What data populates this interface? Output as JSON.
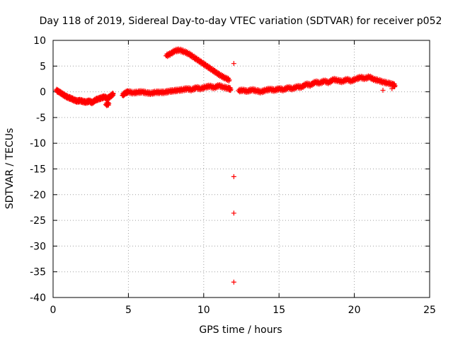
{
  "chart_data": {
    "type": "scatter",
    "title": "Day 118 of 2019, Sidereal Day-to-day VTEC variation (SDTVAR) for receiver p052",
    "xlabel": "GPS time / hours",
    "ylabel": "SDTVAR / TECUs",
    "xlim": [
      0,
      25
    ],
    "ylim": [
      -40,
      10
    ],
    "xticks": [
      0,
      5,
      10,
      15,
      20,
      25
    ],
    "yticks": [
      10,
      5,
      0,
      -5,
      -10,
      -15,
      -20,
      -25,
      -30,
      -35,
      -40
    ],
    "grid": true,
    "marker": "+",
    "series": [
      {
        "name": "SDTVAR",
        "color": "#ff0000",
        "points": [
          [
            0.2,
            0.3
          ],
          [
            0.4,
            0.0
          ],
          [
            0.6,
            -0.4
          ],
          [
            0.8,
            -0.8
          ],
          [
            1.0,
            -1.1
          ],
          [
            1.2,
            -1.3
          ],
          [
            1.4,
            -1.6
          ],
          [
            1.6,
            -1.8
          ],
          [
            1.8,
            -1.7
          ],
          [
            2.0,
            -1.9
          ],
          [
            2.2,
            -2.0
          ],
          [
            2.4,
            -1.8
          ],
          [
            2.6,
            -2.1
          ],
          [
            2.8,
            -1.6
          ],
          [
            3.0,
            -1.4
          ],
          [
            3.2,
            -1.2
          ],
          [
            3.4,
            -1.0
          ],
          [
            3.6,
            -1.3
          ],
          [
            3.8,
            -0.9
          ],
          [
            4.0,
            -0.4
          ],
          [
            3.5,
            -2.5
          ],
          [
            3.7,
            -2.3
          ],
          [
            4.6,
            -0.7
          ],
          [
            4.8,
            -0.2
          ],
          [
            5.0,
            0.0
          ],
          [
            5.3,
            -0.2
          ],
          [
            5.6,
            -0.1
          ],
          [
            5.9,
            0.0
          ],
          [
            6.2,
            -0.2
          ],
          [
            6.5,
            -0.3
          ],
          [
            6.8,
            -0.1
          ],
          [
            7.1,
            -0.1
          ],
          [
            7.4,
            -0.1
          ],
          [
            7.7,
            0.1
          ],
          [
            8.0,
            0.2
          ],
          [
            8.3,
            0.3
          ],
          [
            8.6,
            0.4
          ],
          [
            8.9,
            0.6
          ],
          [
            9.2,
            0.4
          ],
          [
            9.5,
            0.8
          ],
          [
            9.8,
            0.6
          ],
          [
            10.1,
            0.9
          ],
          [
            10.4,
            1.1
          ],
          [
            10.7,
            0.8
          ],
          [
            11.0,
            1.2
          ],
          [
            11.3,
            0.9
          ],
          [
            11.6,
            0.7
          ],
          [
            11.8,
            0.5
          ],
          [
            7.5,
            7.0
          ],
          [
            7.8,
            7.4
          ],
          [
            8.1,
            8.0
          ],
          [
            8.4,
            8.1
          ],
          [
            8.7,
            7.8
          ],
          [
            9.0,
            7.4
          ],
          [
            9.3,
            6.8
          ],
          [
            9.6,
            6.2
          ],
          [
            9.9,
            5.6
          ],
          [
            10.2,
            5.0
          ],
          [
            10.5,
            4.4
          ],
          [
            10.8,
            3.8
          ],
          [
            11.1,
            3.2
          ],
          [
            11.4,
            2.7
          ],
          [
            11.7,
            2.3
          ],
          [
            12.0,
            5.5
          ],
          [
            12.0,
            -16.5
          ],
          [
            12.0,
            -23.6
          ],
          [
            12.0,
            -37.0
          ],
          [
            12.3,
            0.2
          ],
          [
            12.6,
            0.3
          ],
          [
            12.9,
            0.1
          ],
          [
            13.2,
            0.4
          ],
          [
            13.5,
            0.2
          ],
          [
            13.8,
            0.0
          ],
          [
            14.1,
            0.3
          ],
          [
            14.4,
            0.5
          ],
          [
            14.7,
            0.3
          ],
          [
            15.0,
            0.6
          ],
          [
            15.3,
            0.4
          ],
          [
            15.6,
            0.8
          ],
          [
            15.9,
            0.6
          ],
          [
            16.2,
            1.0
          ],
          [
            16.5,
            0.9
          ],
          [
            16.8,
            1.5
          ],
          [
            17.1,
            1.3
          ],
          [
            17.4,
            1.9
          ],
          [
            17.7,
            1.7
          ],
          [
            18.0,
            2.1
          ],
          [
            18.3,
            1.8
          ],
          [
            18.6,
            2.4
          ],
          [
            18.9,
            2.2
          ],
          [
            19.2,
            2.0
          ],
          [
            19.5,
            2.4
          ],
          [
            19.8,
            2.1
          ],
          [
            20.1,
            2.5
          ],
          [
            20.4,
            2.8
          ],
          [
            20.7,
            2.6
          ],
          [
            21.0,
            2.9
          ],
          [
            21.3,
            2.4
          ],
          [
            21.6,
            2.2
          ],
          [
            21.9,
            1.9
          ],
          [
            22.2,
            1.7
          ],
          [
            22.5,
            1.5
          ],
          [
            22.7,
            1.2
          ],
          [
            21.9,
            0.3
          ],
          [
            22.5,
            0.6
          ]
        ]
      }
    ]
  }
}
